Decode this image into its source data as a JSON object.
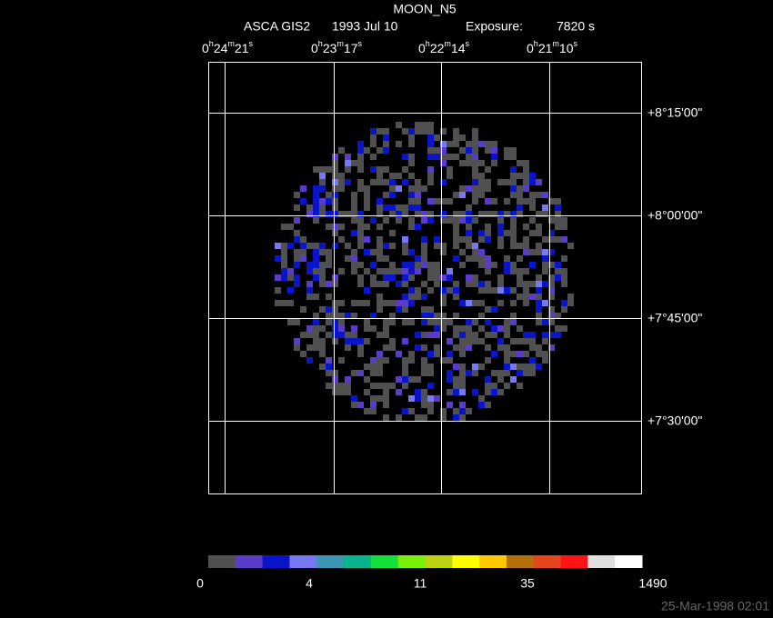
{
  "header": {
    "title": "MOON_N5",
    "instrument": "ASCA GIS2",
    "date": "1993 Jul 10",
    "exposure_label": "Exposure:",
    "exposure": "7820 s"
  },
  "ra_labels": [
    "0h24m21s",
    "0h23m17s",
    "0h22m14s",
    "0h21m10s"
  ],
  "dec_labels": [
    "+8°15'00\"",
    "+8°00'00\"",
    "+7°45'00\"",
    "+7°30'00\""
  ],
  "colorbar": {
    "colors": [
      "#505050",
      "#5a3cc8",
      "#0a14c8",
      "#7878f0",
      "#3c96b4",
      "#0ab48c",
      "#14e03c",
      "#78f00a",
      "#bed214",
      "#ffff00",
      "#ffc800",
      "#b46e0a",
      "#e6461e",
      "#ff1414",
      "#e0e0e0",
      "#ffffff"
    ],
    "labels": [
      "0",
      "4",
      "11",
      "35",
      "1490"
    ]
  },
  "timestamp": "25-Mar-1998 02:01"
}
